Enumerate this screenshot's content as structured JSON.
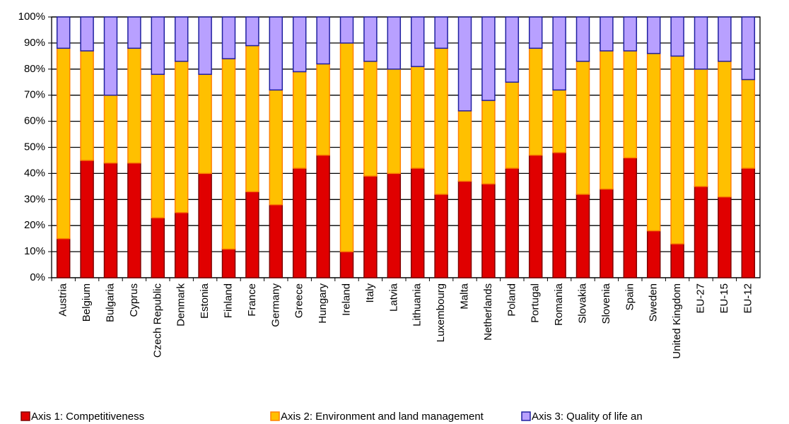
{
  "chart_data": {
    "type": "stacked_bar",
    "categories": [
      "Austria",
      "Belgium",
      "Bulgaria",
      "Cyprus",
      "Czech Republic",
      "Denmark",
      "Estonia",
      "Finland",
      "France",
      "Germany",
      "Greece",
      "Hungary",
      "Ireland",
      "Italy",
      "Latvia",
      "Lithuania",
      "Luxembourg",
      "Malta",
      "Netherlands",
      "Poland",
      "Portugal",
      "Romania",
      "Slovakia",
      "Slovenia",
      "Spain",
      "Sweden",
      "United Kingdom",
      "EU-27",
      "EU-15",
      "EU-12"
    ],
    "series": [
      {
        "name": "Axis 1: Competitiveness",
        "color": "#e00000",
        "edge": "#800000",
        "values": [
          15,
          45,
          44,
          44,
          23,
          25,
          40,
          11,
          33,
          28,
          42,
          47,
          10,
          39,
          40,
          42,
          32,
          37,
          36,
          42,
          47,
          48,
          32,
          34,
          46,
          18,
          13,
          35,
          31,
          42
        ]
      },
      {
        "name": "Axis 2: Environment and land management",
        "color": "#ffc000",
        "edge": "#ff8000",
        "values": [
          73,
          42,
          26,
          44,
          55,
          58,
          38,
          73,
          56,
          44,
          37,
          35,
          80,
          44,
          40,
          39,
          56,
          27,
          32,
          33,
          41,
          24,
          51,
          53,
          41,
          68,
          72,
          45,
          52,
          34
        ]
      },
      {
        "name": "Axis 3: Quality of life an",
        "color": "#b8a0ff",
        "edge": "#2020a0",
        "values": [
          12,
          13,
          30,
          12,
          22,
          17,
          22,
          16,
          11,
          28,
          21,
          18,
          10,
          17,
          20,
          19,
          12,
          36,
          32,
          25,
          12,
          28,
          17,
          13,
          13,
          14,
          15,
          20,
          17,
          24
        ]
      }
    ],
    "ylim": [
      0,
      100
    ],
    "yticks": [
      {
        "value": 0,
        "label": "0%"
      },
      {
        "value": 10,
        "label": "10%"
      },
      {
        "value": 20,
        "label": "20%"
      },
      {
        "value": 30,
        "label": "30%"
      },
      {
        "value": 40,
        "label": "40%"
      },
      {
        "value": 50,
        "label": "50%"
      },
      {
        "value": 60,
        "label": "60%"
      },
      {
        "value": 70,
        "label": "70%"
      },
      {
        "value": 80,
        "label": "80%"
      },
      {
        "value": 90,
        "label": "90%"
      },
      {
        "value": 100,
        "label": "100%"
      }
    ],
    "grid": true
  }
}
